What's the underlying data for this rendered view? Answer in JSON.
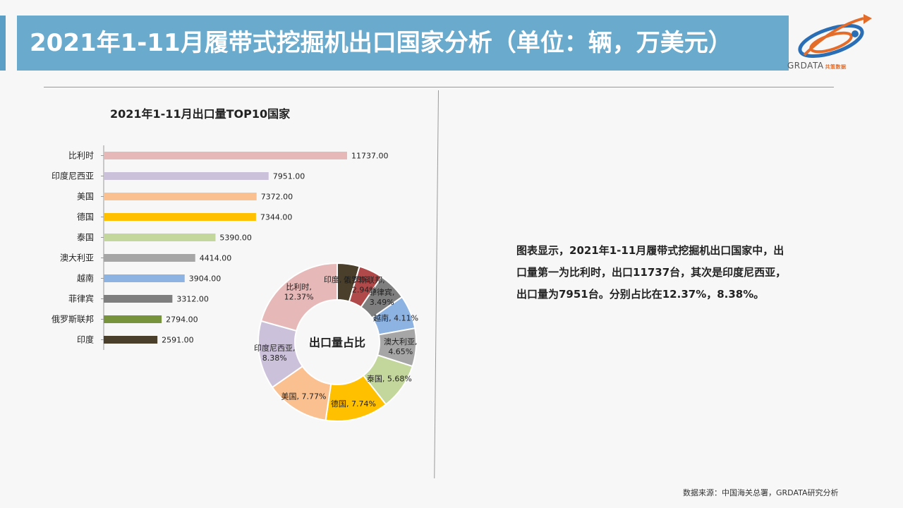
{
  "header": {
    "title": "2021年1-11月履带式挖掘机出口国家分析（单位：辆，万美元）",
    "logo_text": "GRDATA",
    "logo_sub": "共策数据"
  },
  "colors": [
    "#e6b9b8",
    "#ccc1da",
    "#fac090",
    "#ffc000",
    "#c3d69b",
    "#a6a6a6",
    "#8db3e2",
    "#7f7f7f",
    "#77933c",
    "#4a3f2b"
  ],
  "chart_data": [
    {
      "type": "bar",
      "orientation": "horizontal",
      "title": "2021年1-11月出口量TOP10国家",
      "categories": [
        "比利时",
        "印度尼西亚",
        "美国",
        "德国",
        "泰国",
        "澳大利亚",
        "越南",
        "菲律宾",
        "俄罗斯联邦",
        "印度"
      ],
      "values": [
        11737,
        7951,
        7372,
        7344,
        5390,
        4414,
        3904,
        3312,
        2794,
        2591
      ],
      "value_labels": [
        "11737.00",
        "7951.00",
        "7372.00",
        "7344.00",
        "5390.00",
        "4414.00",
        "3904.00",
        "3312.00",
        "2794.00",
        "2591.00"
      ]
    },
    {
      "type": "pie",
      "donut": true,
      "title": "出口量占比",
      "slices": [
        {
          "label": "印度",
          "value": 2.73,
          "text": "印度, 2.73%",
          "color": "#4a3f2b"
        },
        {
          "label": "俄罗斯联邦",
          "value": 2.94,
          "text": "俄罗斯联邦, 2.94%",
          "color": "#b04a4a"
        },
        {
          "label": "菲律宾",
          "value": 3.49,
          "text": "菲律宾, 3.49%",
          "color": "#7f7f7f"
        },
        {
          "label": "越南",
          "value": 4.11,
          "text": "越南, 4.11%",
          "color": "#8db3e2"
        },
        {
          "label": "澳大利亚",
          "value": 4.65,
          "text": "澳大利亚, 4.65%",
          "color": "#a6a6a6"
        },
        {
          "label": "泰国",
          "value": 5.68,
          "text": "泰国, 5.68%",
          "color": "#c3d69b"
        },
        {
          "label": "德国",
          "value": 7.74,
          "text": "德国, 7.74%",
          "color": "#ffc000"
        },
        {
          "label": "美国",
          "value": 7.77,
          "text": "美国, 7.77%",
          "color": "#fac090"
        },
        {
          "label": "印度尼西亚",
          "value": 8.38,
          "text": "印度尼西亚, 8.38%",
          "color": "#ccc1da"
        },
        {
          "label": "比利时",
          "value": 12.37,
          "text": "比利时, 12.37%",
          "color": "#e6b9b8"
        }
      ]
    }
  ],
  "description": "图表显示，2021年1-11月履带式挖掘机出口国家中，出口量第一为比利时，出口11737台，其次是印度尼西亚，出口量为7951台。分别占比在12.37%，8.38%。",
  "source": "数据来源：中国海关总署，GRDATA研究分析"
}
